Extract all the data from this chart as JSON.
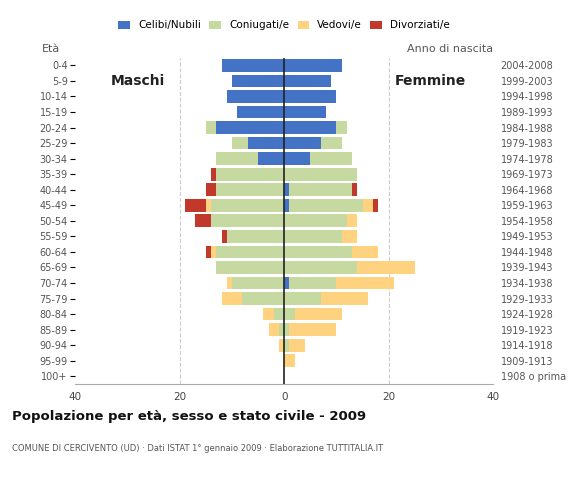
{
  "age_groups": [
    "100+",
    "95-99",
    "90-94",
    "85-89",
    "80-84",
    "75-79",
    "70-74",
    "65-69",
    "60-64",
    "55-59",
    "50-54",
    "45-49",
    "40-44",
    "35-39",
    "30-34",
    "25-29",
    "20-24",
    "15-19",
    "10-14",
    "5-9",
    "0-4"
  ],
  "birth_years": [
    "1908 o prima",
    "1909-1913",
    "1914-1918",
    "1919-1923",
    "1924-1928",
    "1929-1933",
    "1934-1938",
    "1939-1943",
    "1944-1948",
    "1949-1953",
    "1954-1958",
    "1959-1963",
    "1964-1968",
    "1969-1973",
    "1974-1978",
    "1979-1983",
    "1984-1988",
    "1989-1993",
    "1994-1998",
    "1999-2003",
    "2004-2008"
  ],
  "males": {
    "celibi": [
      0,
      0,
      0,
      0,
      0,
      0,
      0,
      0,
      0,
      0,
      0,
      0,
      0,
      0,
      5,
      7,
      13,
      9,
      11,
      10,
      12
    ],
    "coniugati": [
      0,
      0,
      0,
      1,
      2,
      8,
      10,
      13,
      13,
      11,
      14,
      14,
      13,
      13,
      8,
      3,
      2,
      0,
      0,
      0,
      0
    ],
    "vedovi": [
      0,
      0,
      1,
      2,
      2,
      4,
      1,
      0,
      1,
      0,
      0,
      1,
      0,
      0,
      0,
      0,
      0,
      0,
      0,
      0,
      0
    ],
    "divorziati": [
      0,
      0,
      0,
      0,
      0,
      0,
      0,
      0,
      1,
      1,
      3,
      4,
      2,
      1,
      0,
      0,
      0,
      0,
      0,
      0,
      0
    ]
  },
  "females": {
    "nubili": [
      0,
      0,
      0,
      0,
      0,
      0,
      1,
      0,
      0,
      0,
      0,
      1,
      1,
      0,
      5,
      7,
      10,
      8,
      10,
      9,
      11
    ],
    "coniugate": [
      0,
      0,
      1,
      1,
      2,
      7,
      9,
      14,
      13,
      11,
      12,
      14,
      12,
      14,
      8,
      4,
      2,
      0,
      0,
      0,
      0
    ],
    "vedove": [
      0,
      2,
      3,
      9,
      9,
      9,
      11,
      11,
      5,
      3,
      2,
      2,
      0,
      0,
      0,
      0,
      0,
      0,
      0,
      0,
      0
    ],
    "divorziate": [
      0,
      0,
      0,
      0,
      0,
      0,
      0,
      0,
      0,
      0,
      0,
      1,
      1,
      0,
      0,
      0,
      0,
      0,
      0,
      0,
      0
    ]
  },
  "colors": {
    "celibi": "#4472c4",
    "coniugati": "#c5d9a0",
    "vedovi": "#ffd280",
    "divorziati": "#c0392b"
  },
  "xlim": 40,
  "title": "Popolazione per età, sesso e stato civile - 2009",
  "subtitle": "COMUNE DI CERCIVENTO (UD) · Dati ISTAT 1° gennaio 2009 · Elaborazione TUTTITALIA.IT",
  "legend_labels": [
    "Celibi/Nubili",
    "Coniugati/e",
    "Vedovi/e",
    "Divorziati/e"
  ],
  "background_color": "#ffffff",
  "grid_color": "#cccccc",
  "maschi_label": "Maschi",
  "femmine_label": "Femmine",
  "eta_label": "Età",
  "anno_label": "Anno di nascita"
}
